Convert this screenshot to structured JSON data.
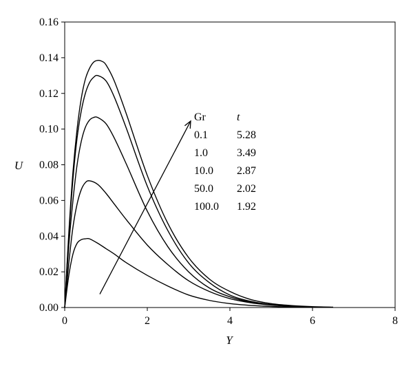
{
  "chart_data": {
    "type": "line",
    "xlabel": "Y",
    "ylabel": "U",
    "xlim": [
      0,
      8
    ],
    "ylim": [
      0,
      0.16
    ],
    "xticks": [
      "0",
      "2",
      "4",
      "6",
      "8"
    ],
    "yticks": [
      "0.00",
      "0.02",
      "0.04",
      "0.06",
      "0.08",
      "0.10",
      "0.12",
      "0.14",
      "0.16"
    ],
    "grid": false,
    "legend_table": {
      "headers": [
        "Gr",
        "t"
      ],
      "rows": [
        [
          "0.1",
          "5.28"
        ],
        [
          "1.0",
          "3.49"
        ],
        [
          "10.0",
          "2.87"
        ],
        [
          "50.0",
          "2.02"
        ],
        [
          "100.0",
          "1.92"
        ]
      ]
    },
    "arrow": {
      "from": [
        0.85,
        0.0075
      ],
      "to": [
        3.05,
        0.1045
      ]
    },
    "series": [
      {
        "x": [
          0,
          0.1,
          0.2,
          0.3,
          0.4,
          0.5,
          0.6,
          0.8,
          1.0,
          1.2,
          1.5,
          2.0,
          2.5,
          3.0,
          3.5,
          4.0,
          4.5,
          5.0,
          5.5,
          6.0
        ],
        "values": [
          0,
          0.018,
          0.03,
          0.036,
          0.038,
          0.0385,
          0.0385,
          0.036,
          0.033,
          0.03,
          0.025,
          0.018,
          0.012,
          0.007,
          0.004,
          0.0022,
          0.0012,
          0.0006,
          0.0003,
          0.0001
        ]
      },
      {
        "x": [
          0,
          0.1,
          0.2,
          0.3,
          0.4,
          0.5,
          0.6,
          0.8,
          1.0,
          1.2,
          1.5,
          2.0,
          2.5,
          3.0,
          3.5,
          4.0,
          4.5,
          5.0,
          5.5,
          6.0
        ],
        "values": [
          0,
          0.025,
          0.045,
          0.058,
          0.066,
          0.07,
          0.071,
          0.069,
          0.064,
          0.058,
          0.049,
          0.035,
          0.024,
          0.015,
          0.009,
          0.005,
          0.0027,
          0.0014,
          0.0007,
          0.0003
        ]
      },
      {
        "x": [
          0,
          0.1,
          0.2,
          0.3,
          0.4,
          0.5,
          0.6,
          0.7,
          0.8,
          1.0,
          1.2,
          1.5,
          2.0,
          2.5,
          3.0,
          3.5,
          4.0,
          4.5,
          5.0,
          5.5,
          6.0
        ],
        "values": [
          0,
          0.035,
          0.06,
          0.08,
          0.093,
          0.101,
          0.105,
          0.1065,
          0.1065,
          0.103,
          0.095,
          0.08,
          0.054,
          0.034,
          0.02,
          0.011,
          0.006,
          0.003,
          0.0015,
          0.0007,
          0.0003
        ]
      },
      {
        "x": [
          0,
          0.1,
          0.2,
          0.3,
          0.4,
          0.5,
          0.6,
          0.7,
          0.8,
          1.0,
          1.2,
          1.5,
          2.0,
          2.5,
          3.0,
          3.5,
          4.0,
          4.5,
          5.0,
          5.5,
          6.0
        ],
        "values": [
          0,
          0.04,
          0.072,
          0.095,
          0.11,
          0.12,
          0.126,
          0.129,
          0.13,
          0.127,
          0.118,
          0.1,
          0.068,
          0.043,
          0.025,
          0.014,
          0.007,
          0.0035,
          0.0017,
          0.0008,
          0.0004
        ]
      },
      {
        "x": [
          0,
          0.1,
          0.2,
          0.3,
          0.4,
          0.5,
          0.6,
          0.7,
          0.8,
          0.9,
          1.0,
          1.2,
          1.5,
          2.0,
          2.5,
          3.0,
          3.5,
          4.0,
          4.5,
          5.0,
          5.5,
          6.0,
          6.5
        ],
        "values": [
          0,
          0.042,
          0.076,
          0.1,
          0.117,
          0.128,
          0.134,
          0.1375,
          0.1385,
          0.138,
          0.136,
          0.127,
          0.108,
          0.074,
          0.047,
          0.028,
          0.016,
          0.009,
          0.0045,
          0.0022,
          0.0011,
          0.0005,
          0.0002
        ]
      }
    ]
  }
}
